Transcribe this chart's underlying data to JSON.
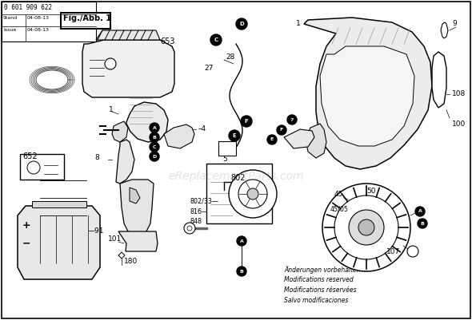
{
  "fig_width": 5.9,
  "fig_height": 4.01,
  "dpi": 100,
  "bg_color": "#ffffff",
  "header_line1": "0 601 909 622",
  "header_fig": "Fig./Abb. 1",
  "header_date": "04-08-13",
  "footer_lines": [
    "Änderungen vorbehalten",
    "Modifications reserved",
    "Modifications réservées",
    "Salvo modificaciones"
  ],
  "watermark": "eReplacementParts.com"
}
